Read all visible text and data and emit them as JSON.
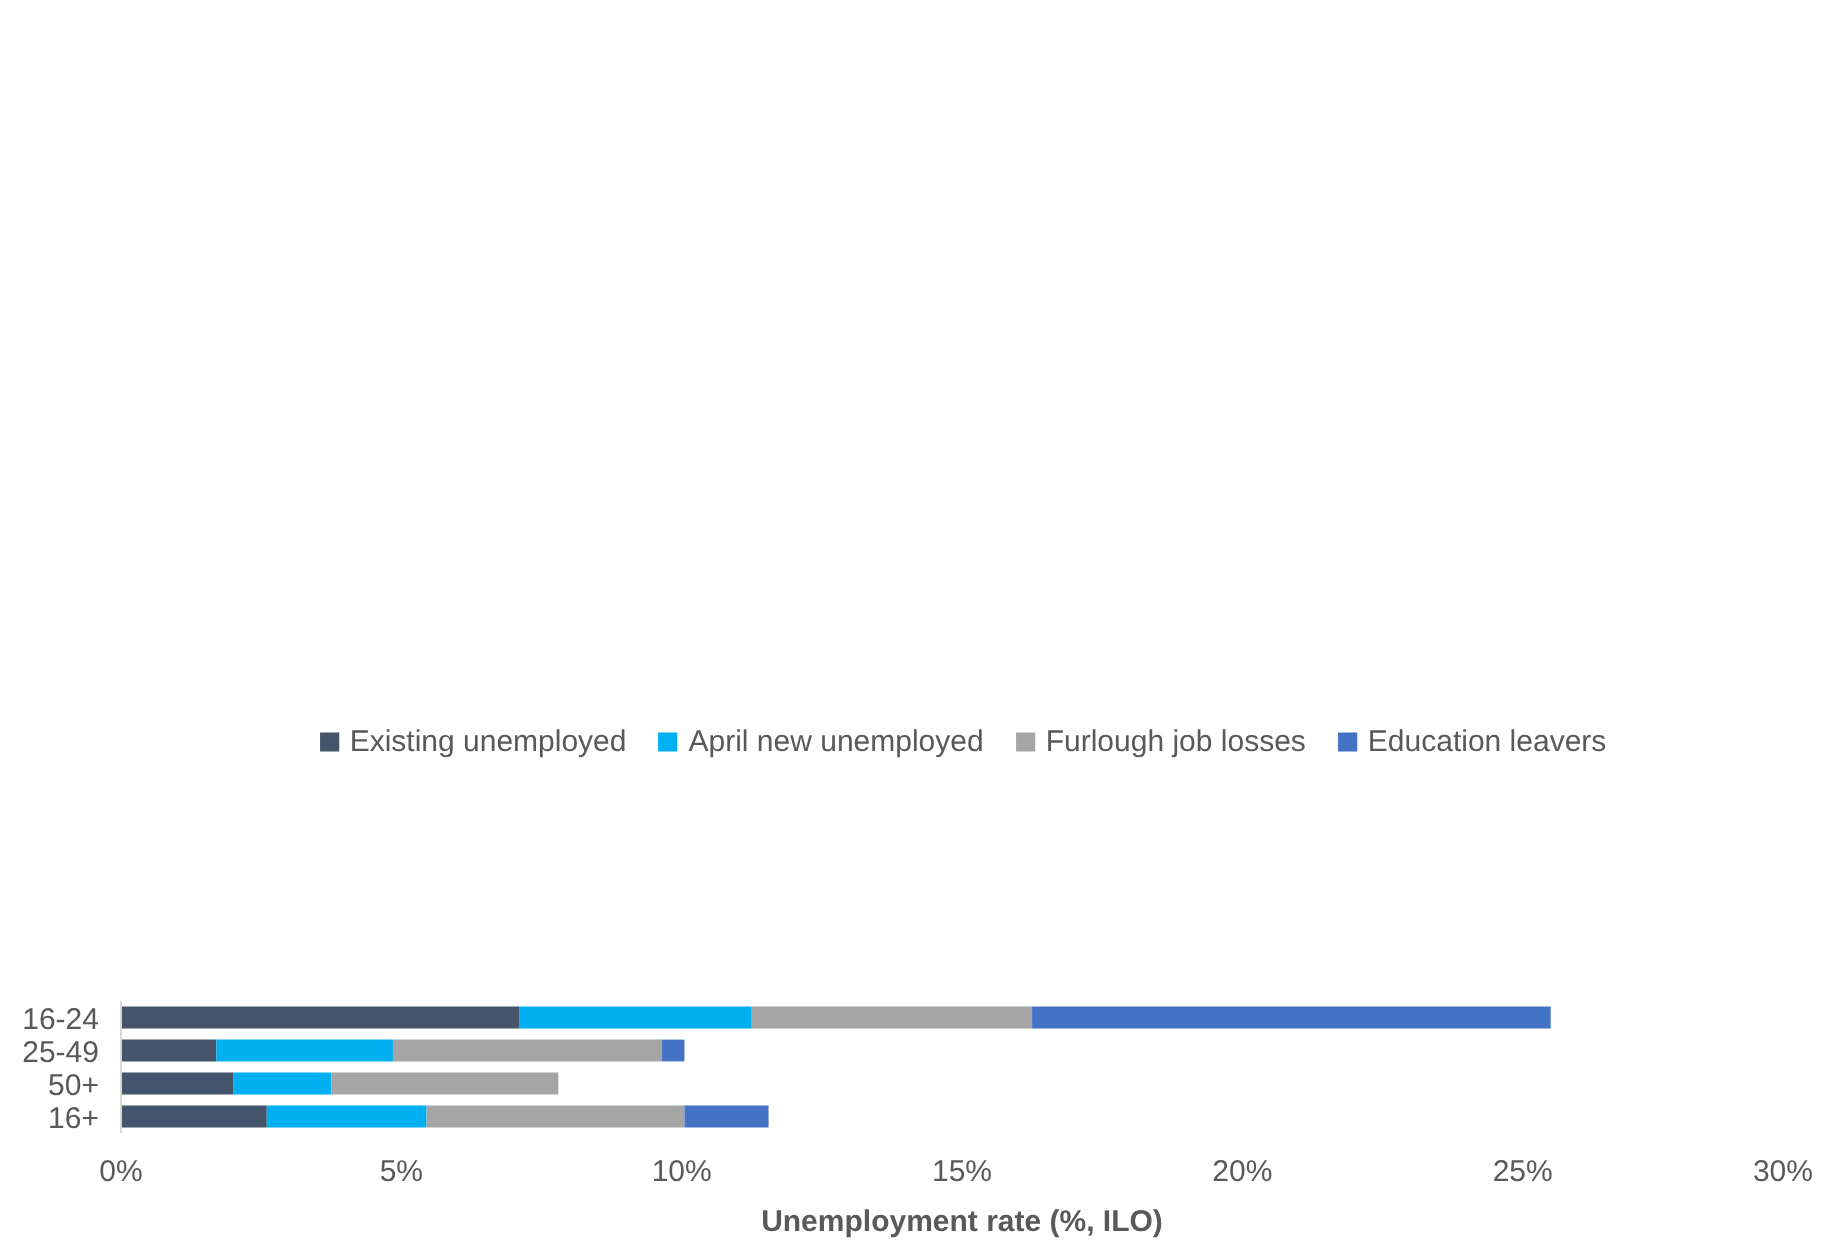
{
  "chart_data": {
    "type": "bar",
    "orientation": "horizontal",
    "stacked": true,
    "xlabel": "Unemployment rate (%, ILO)",
    "categories": [
      "16-24",
      "25-49",
      "50+",
      "16+"
    ],
    "series": [
      {
        "name": "Existing unemployed",
        "color": "#44546a",
        "values": [
          7.1,
          1.7,
          2.0,
          2.6
        ]
      },
      {
        "name": "April new unemployed",
        "color": "#00b0f0",
        "values": [
          4.15,
          3.15,
          1.75,
          2.85
        ]
      },
      {
        "name": "Furlough job losses",
        "color": "#a5a5a5",
        "values": [
          5.0,
          4.8,
          4.05,
          4.6
        ]
      },
      {
        "name": "Education leavers",
        "color": "#4472c4",
        "values": [
          9.25,
          0.4,
          null,
          1.5
        ]
      }
    ],
    "xlim": [
      0,
      30
    ],
    "xticks": [
      {
        "value": 0,
        "label": "0%"
      },
      {
        "value": 5,
        "label": "5%"
      },
      {
        "value": 10,
        "label": "10%"
      },
      {
        "value": 15,
        "label": "15%"
      },
      {
        "value": 20,
        "label": "20%"
      },
      {
        "value": 25,
        "label": "25%"
      },
      {
        "value": 30,
        "label": "30%"
      }
    ],
    "grid": false,
    "legend": "top"
  }
}
